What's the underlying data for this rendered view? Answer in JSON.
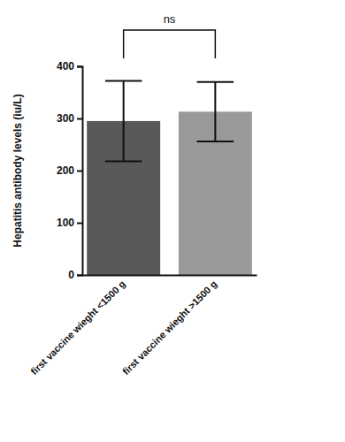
{
  "chart_data": {
    "type": "bar",
    "y_label": "Hepatitis antibody levels (iu/L)",
    "categories": [
      "first vaccine wieght <1500 g",
      "first vaccine wieght >1500 g"
    ],
    "values": [
      295,
      313
    ],
    "errors": [
      77,
      57
    ],
    "colors": [
      "#595959",
      "#999999"
    ],
    "ylim": [
      0,
      400
    ],
    "yticks": [
      0,
      100,
      200,
      300,
      400
    ],
    "grid": false,
    "annotations": [
      {
        "text": "ns"
      }
    ]
  }
}
